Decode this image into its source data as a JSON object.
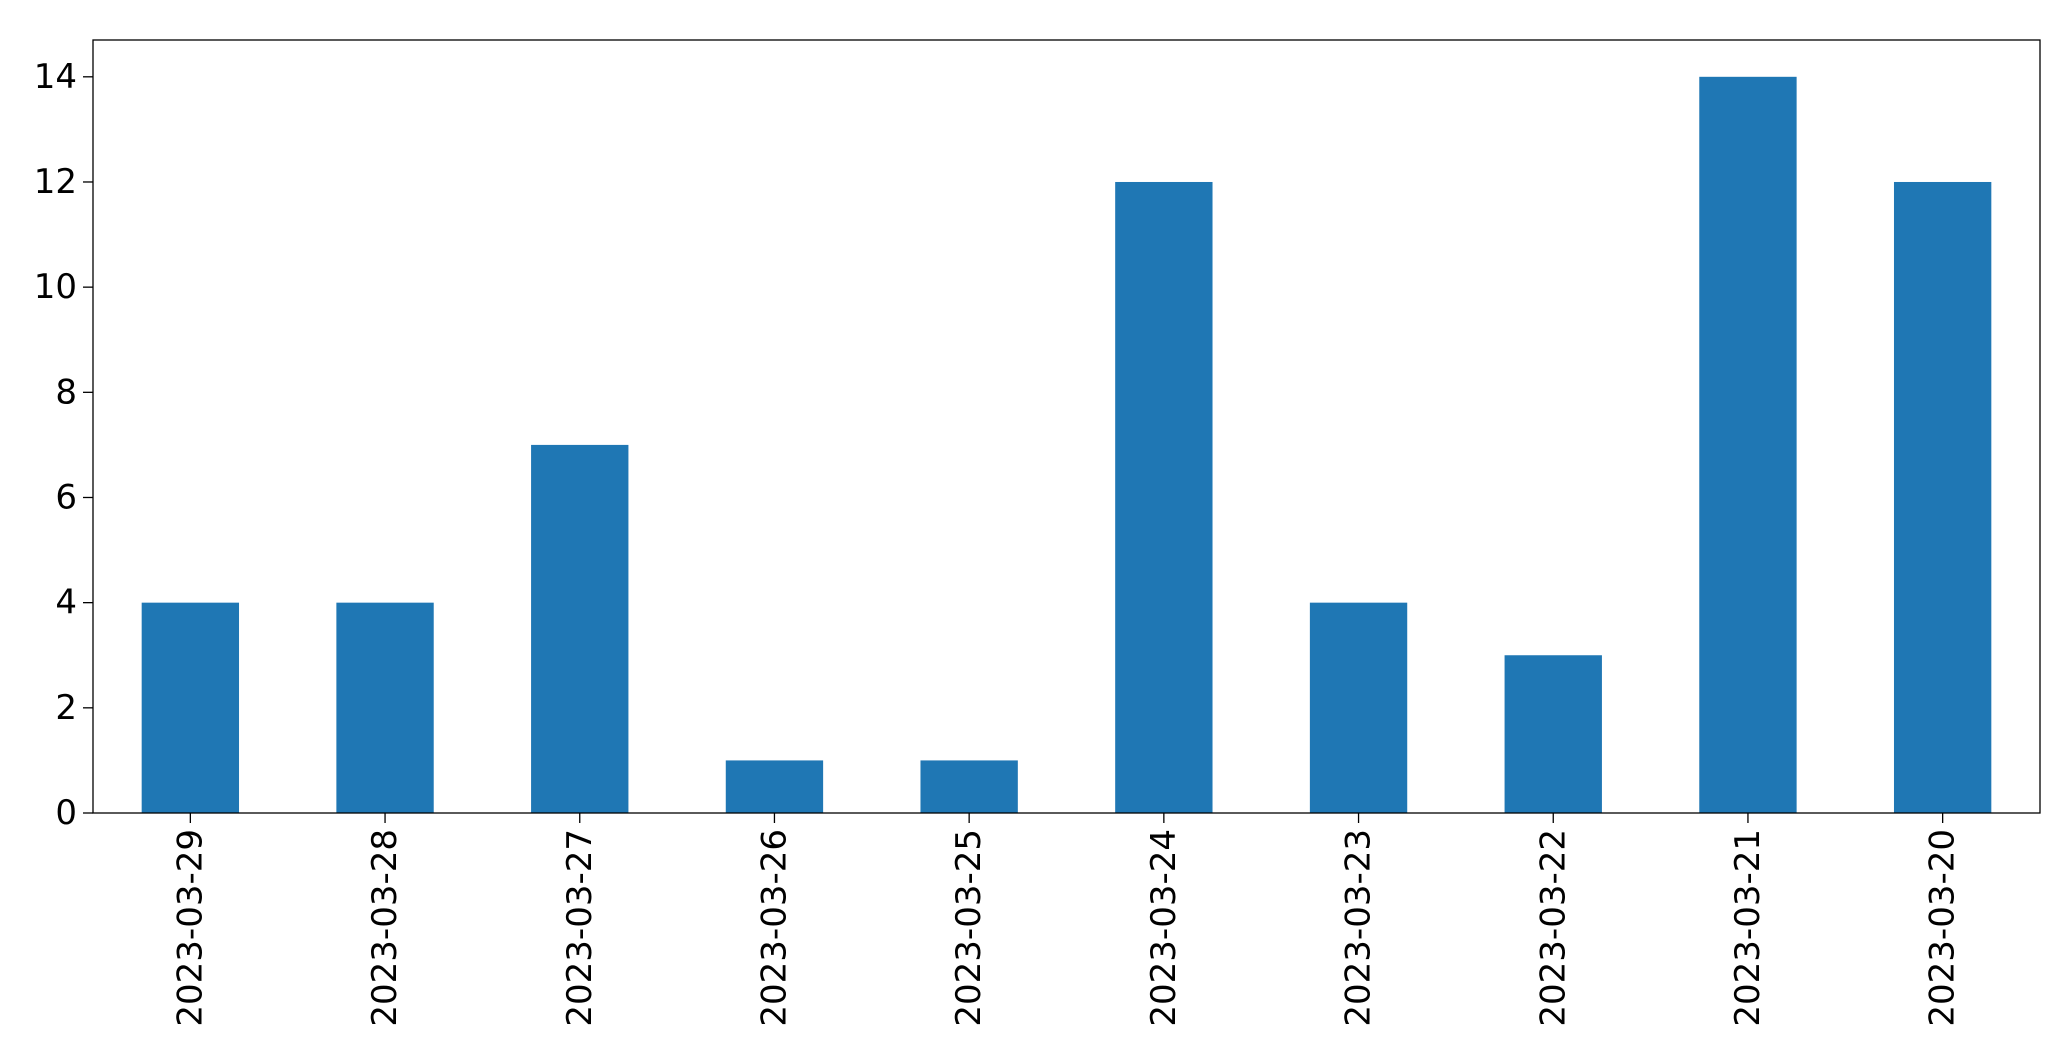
{
  "chart_data": {
    "type": "bar",
    "title": "",
    "xlabel": "",
    "ylabel": "",
    "categories": [
      "2023-03-29",
      "2023-03-28",
      "2023-03-27",
      "2023-03-26",
      "2023-03-25",
      "2023-03-24",
      "2023-03-23",
      "2023-03-22",
      "2023-03-21",
      "2023-03-20"
    ],
    "values": [
      4,
      4,
      7,
      1,
      1,
      12,
      4,
      3,
      14,
      12
    ],
    "ylim": [
      0,
      14.7
    ],
    "yticks": [
      0,
      2,
      4,
      6,
      8,
      10,
      12,
      14
    ],
    "grid": false,
    "legend": "none",
    "x_tick_rotation": "vertical",
    "bar_color": "#1f77b4"
  }
}
